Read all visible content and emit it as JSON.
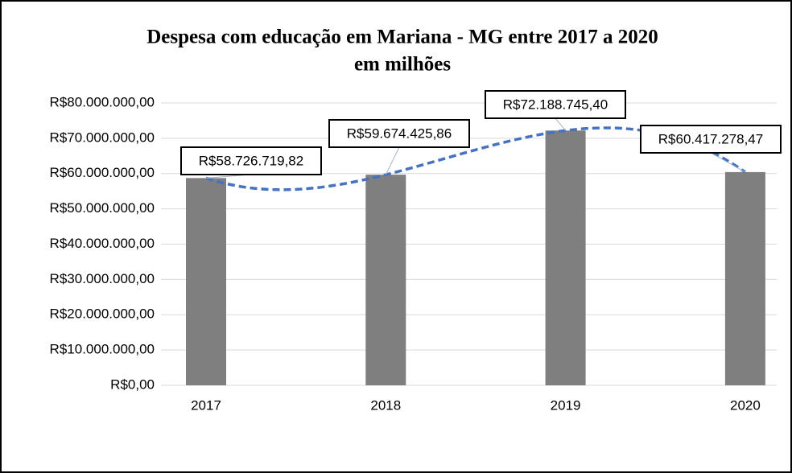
{
  "chart_data": {
    "type": "bar",
    "title": "Despesa com educação em Mariana - MG entre 2017 a 2020",
    "subtitle": "em milhões",
    "categories": [
      "2017",
      "2018",
      "2019",
      "2020"
    ],
    "values": [
      58726719.82,
      59674425.86,
      72188745.4,
      60417278.47
    ],
    "value_labels": [
      "R$58.726.719,82",
      "R$59.674.425,86",
      "R$72.188.745,40",
      "R$60.417.278,47"
    ],
    "color": "#7f7f7f",
    "ylim": [
      0,
      80000000
    ],
    "yticks": [
      {
        "value": 0,
        "label": "R$0,00"
      },
      {
        "value": 10000000,
        "label": "R$10.000.000,00"
      },
      {
        "value": 20000000,
        "label": "R$20.000.000,00"
      },
      {
        "value": 30000000,
        "label": "R$30.000.000,00"
      },
      {
        "value": 40000000,
        "label": "R$40.000.000,00"
      },
      {
        "value": 50000000,
        "label": "R$50.000.000,00"
      },
      {
        "value": 60000000,
        "label": "R$60.000.000,00"
      },
      {
        "value": 70000000,
        "label": "R$70.000.000,00"
      },
      {
        "value": 80000000,
        "label": "R$80.000.000,00"
      }
    ],
    "grid": true,
    "trendline": {
      "order": 3,
      "color": "#4472c4",
      "dashed": true
    }
  }
}
